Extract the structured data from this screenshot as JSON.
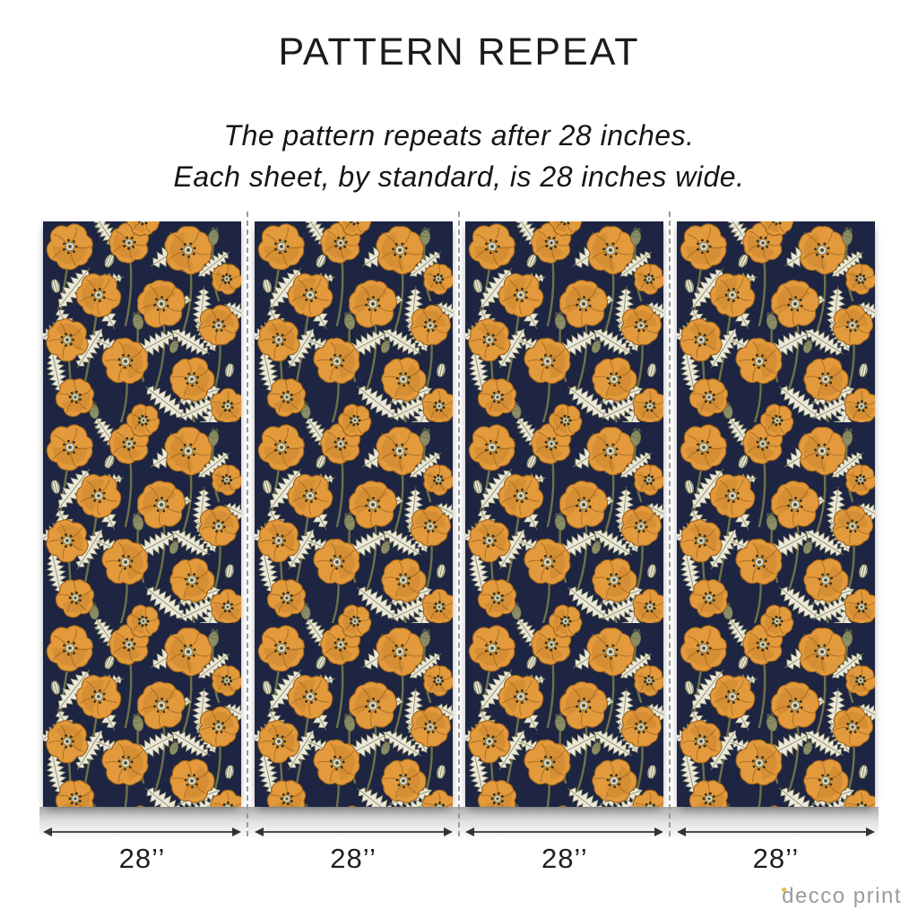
{
  "header": {
    "title": "PATTERN REPEAT",
    "subtitle_line1": "The pattern repeats after 28 inches.",
    "subtitle_line2": "Each sheet, by standard, is 28 inches wide."
  },
  "panels": [
    {
      "width_label": "28’’"
    },
    {
      "width_label": "28’’"
    },
    {
      "width_label": "28’’"
    },
    {
      "width_label": "28’’"
    }
  ],
  "brand": {
    "name": "decco print"
  },
  "pattern_colors": {
    "navy": "#1d2542",
    "orange": "#e29a3c",
    "orange_dark": "#c07c28",
    "orange_deep": "#9c611a",
    "cream": "#ece8da",
    "olive": "#8b8d66",
    "olive_dark": "#6e7048",
    "center_pale": "#d9d4c2",
    "center_dark": "#4f5130",
    "dot_dark": "#2c2e1c"
  }
}
